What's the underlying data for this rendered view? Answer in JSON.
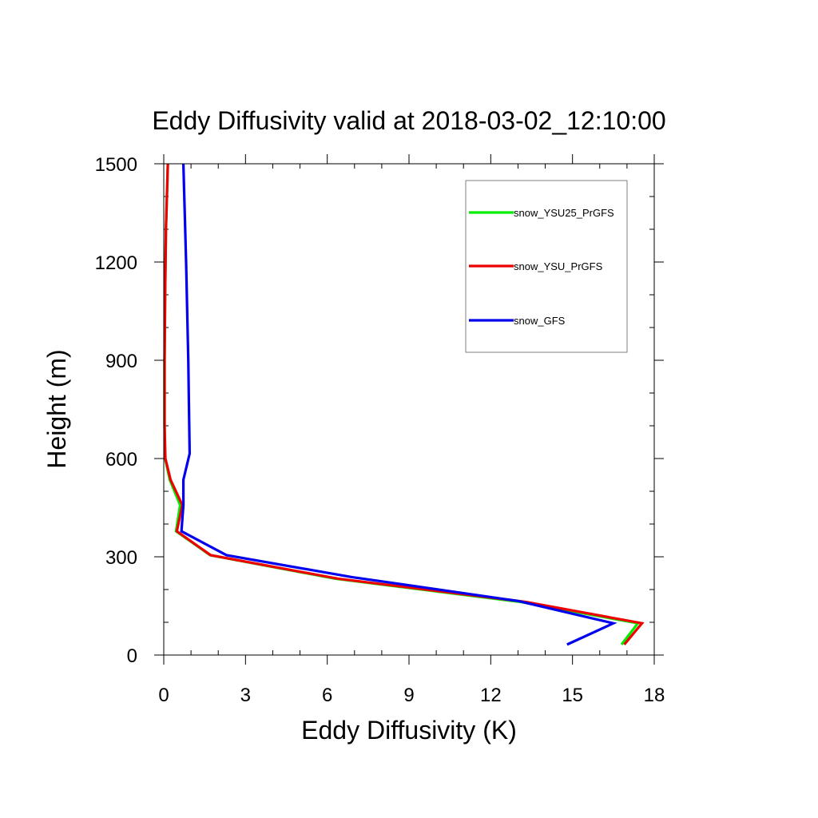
{
  "chart_data": {
    "type": "line",
    "title": "Eddy Diffusivity valid at 2018-03-02_12:10:00",
    "xlabel": "Eddy Diffusivity (K)",
    "ylabel": "Height (m)",
    "xlim": [
      0,
      18
    ],
    "ylim": [
      0,
      1500
    ],
    "x_ticks": [
      0,
      3,
      6,
      9,
      12,
      15,
      18
    ],
    "y_ticks": [
      0,
      300,
      600,
      900,
      1200,
      1500
    ],
    "x_tick_labels": [
      "0",
      "3",
      "6",
      "9",
      "12",
      "15",
      "18"
    ],
    "y_tick_labels": [
      "0",
      "300",
      "600",
      "900",
      "1200",
      "1500"
    ],
    "grid": false,
    "legend_position": "top-right",
    "series": [
      {
        "name": "snow_YSU25_PrGFS",
        "color": "#00ee00",
        "points": [
          [
            16.8,
            32
          ],
          [
            17.4,
            97
          ],
          [
            13.1,
            162
          ],
          [
            6.3,
            233
          ],
          [
            1.7,
            305
          ],
          [
            0.45,
            378
          ],
          [
            0.6,
            458
          ],
          [
            0.22,
            535
          ],
          [
            0.05,
            600
          ],
          [
            0.03,
            700
          ],
          [
            0.03,
            900
          ],
          [
            0.05,
            1100
          ],
          [
            0.08,
            1300
          ],
          [
            0.15,
            1500
          ]
        ]
      },
      {
        "name": "snow_YSU_PrGFS",
        "color": "#ee0000",
        "points": [
          [
            16.9,
            32
          ],
          [
            17.55,
            97
          ],
          [
            13.3,
            162
          ],
          [
            6.4,
            233
          ],
          [
            1.72,
            305
          ],
          [
            0.48,
            378
          ],
          [
            0.68,
            458
          ],
          [
            0.25,
            535
          ],
          [
            0.06,
            600
          ],
          [
            0.03,
            700
          ],
          [
            0.03,
            900
          ],
          [
            0.05,
            1100
          ],
          [
            0.08,
            1300
          ],
          [
            0.15,
            1500
          ]
        ]
      },
      {
        "name": "snow_GFS",
        "color": "#0000ee",
        "points": [
          [
            14.8,
            32
          ],
          [
            16.5,
            97
          ],
          [
            13.0,
            165
          ],
          [
            6.9,
            238
          ],
          [
            2.3,
            305
          ],
          [
            0.65,
            378
          ],
          [
            0.72,
            458
          ],
          [
            0.72,
            535
          ],
          [
            0.95,
            615
          ],
          [
            0.9,
            900
          ],
          [
            0.82,
            1200
          ],
          [
            0.72,
            1500
          ]
        ]
      }
    ]
  }
}
